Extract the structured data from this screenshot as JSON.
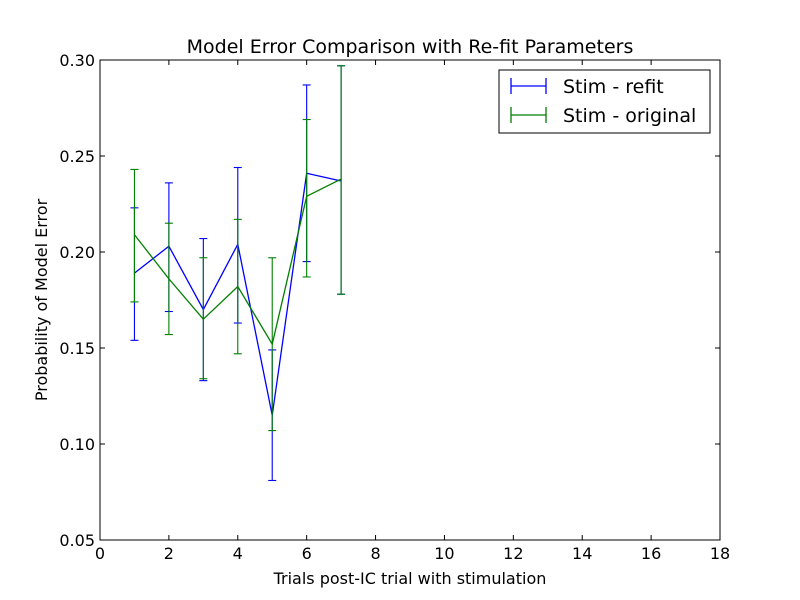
{
  "chart_data": {
    "type": "line",
    "title": "Model Error Comparison with Re-fit Parameters",
    "xlabel": "Trials post-IC trial with stimulation",
    "ylabel": "Probability of Model Error",
    "xlim": [
      0,
      18
    ],
    "ylim": [
      0.05,
      0.3
    ],
    "xticks": [
      "0",
      "2",
      "4",
      "6",
      "8",
      "10",
      "12",
      "14",
      "16",
      "18"
    ],
    "yticks": [
      "0.05",
      "0.10",
      "0.15",
      "0.20",
      "0.25",
      "0.30"
    ],
    "legend_position": "top-right",
    "grid": false,
    "series": [
      {
        "name": "Stim - refit",
        "color": "#0000ff",
        "x": [
          1,
          2,
          3,
          4,
          5,
          6,
          7
        ],
        "y": [
          0.189,
          0.203,
          0.17,
          0.204,
          0.115,
          0.241,
          0.237
        ],
        "err_low": [
          0.154,
          0.169,
          0.133,
          0.163,
          0.081,
          0.195,
          0.178
        ],
        "err_high": [
          0.223,
          0.236,
          0.207,
          0.244,
          0.149,
          0.287,
          0.297
        ]
      },
      {
        "name": "Stim - original",
        "color": "#008000",
        "x": [
          1,
          2,
          3,
          4,
          5,
          6,
          7
        ],
        "y": [
          0.209,
          0.186,
          0.165,
          0.182,
          0.152,
          0.229,
          0.238
        ],
        "err_low": [
          0.174,
          0.157,
          0.134,
          0.147,
          0.107,
          0.187,
          0.178
        ],
        "err_high": [
          0.243,
          0.215,
          0.197,
          0.217,
          0.197,
          0.269,
          0.297
        ]
      }
    ]
  }
}
